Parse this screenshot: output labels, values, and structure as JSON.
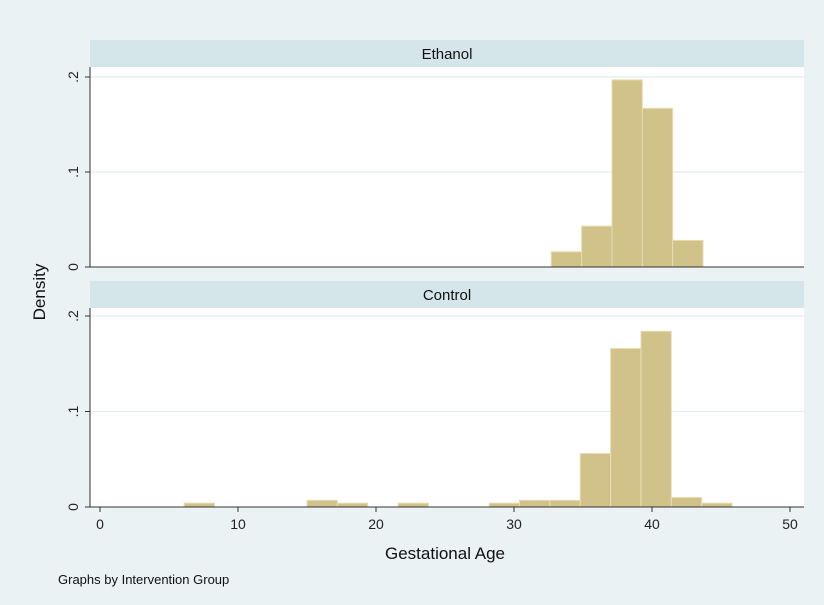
{
  "chart_data": {
    "type": "bar",
    "bin_width": 2.2,
    "xlabel": "Gestational Age",
    "ylabel": "Density",
    "xlim": [
      0,
      50
    ],
    "ylim": [
      0,
      0.2
    ],
    "x_ticks": [
      0,
      10,
      20,
      30,
      40,
      50
    ],
    "y_ticks": [
      0,
      0.1,
      0.2
    ],
    "y_tick_labels": [
      "0",
      ".1",
      ".2"
    ],
    "note": "Graphs by Intervention Group",
    "bar_color": "#d1c28a",
    "panels": [
      {
        "name": "Ethanol",
        "bins": [
          {
            "x0": 32.7,
            "density": 0.016
          },
          {
            "x0": 34.9,
            "density": 0.043
          },
          {
            "x0": 37.1,
            "density": 0.197
          },
          {
            "x0": 39.3,
            "density": 0.167
          },
          {
            "x0": 41.5,
            "density": 0.028
          }
        ]
      },
      {
        "name": "Control",
        "bins": [
          {
            "x0": 6.1,
            "density": 0.004
          },
          {
            "x0": 15.0,
            "density": 0.007
          },
          {
            "x0": 17.2,
            "density": 0.004
          },
          {
            "x0": 21.6,
            "density": 0.004
          },
          {
            "x0": 28.2,
            "density": 0.004
          },
          {
            "x0": 30.4,
            "density": 0.007
          },
          {
            "x0": 32.6,
            "density": 0.007
          },
          {
            "x0": 34.8,
            "density": 0.056
          },
          {
            "x0": 37.0,
            "density": 0.166
          },
          {
            "x0": 39.2,
            "density": 0.184
          },
          {
            "x0": 41.4,
            "density": 0.01
          },
          {
            "x0": 43.6,
            "density": 0.004
          }
        ]
      }
    ]
  }
}
